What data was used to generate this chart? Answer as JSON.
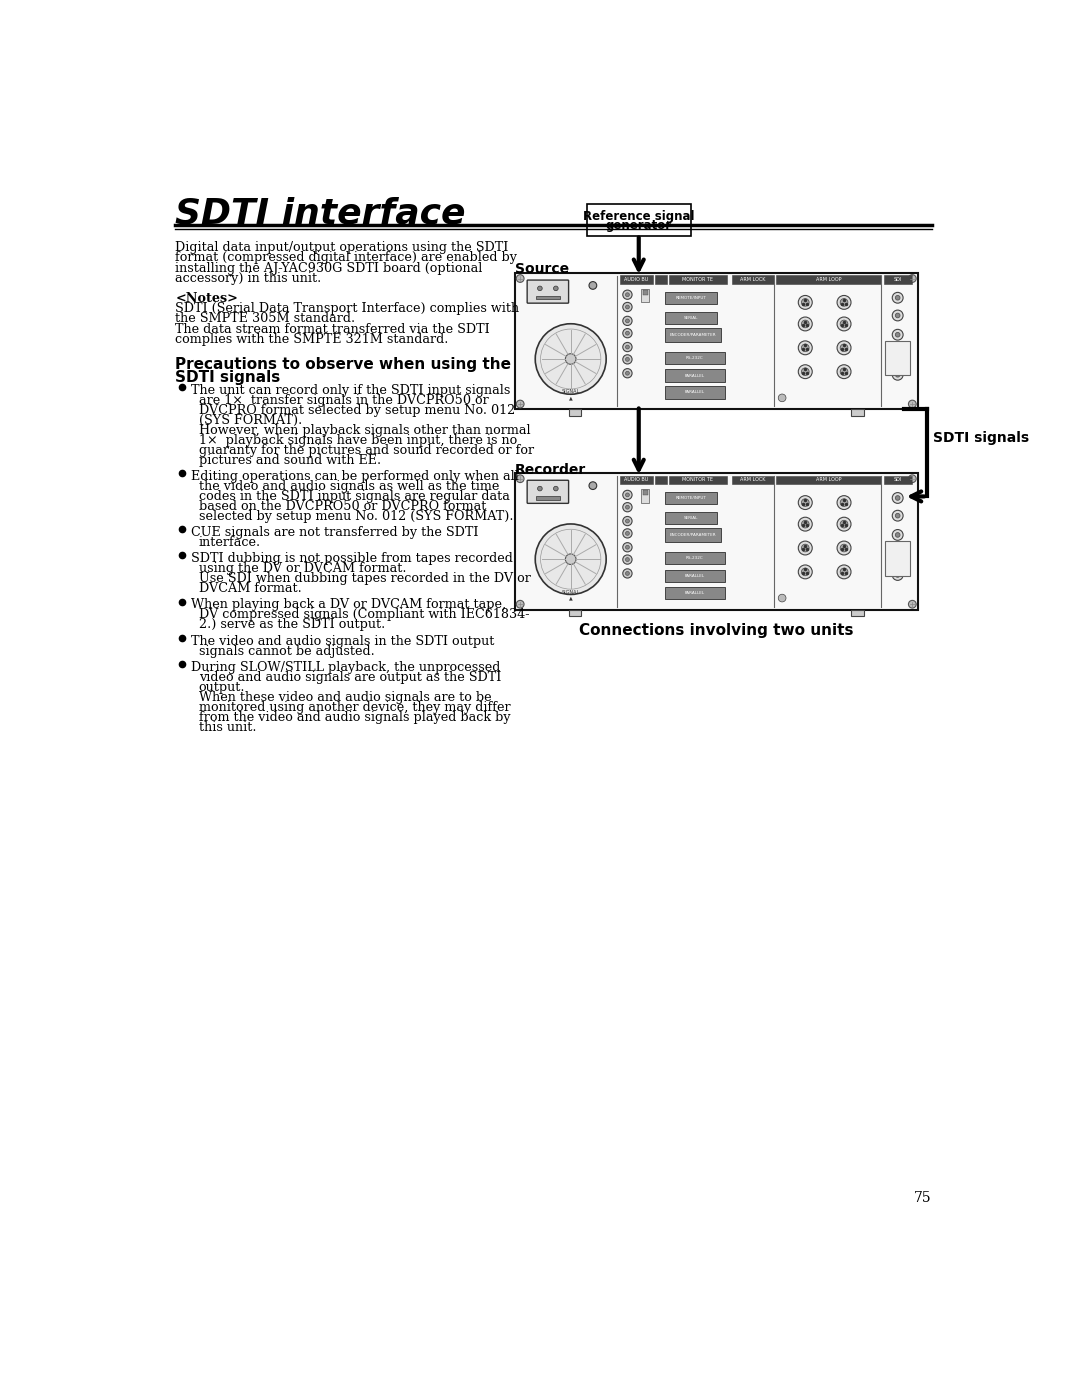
{
  "title": "SDTI interface",
  "bg_color": "#ffffff",
  "text_color": "#000000",
  "page_number": "75",
  "intro_text": "Digital data input/output operations using the SDTI\nformat (compressed digital interface) are enabled by\ninstalling the AJ-YAC930G SDTI board (optional\naccessory) in this unit.",
  "notes_header": "<Notes>",
  "notes_line1": "SDTI (Serial Data Transport Interface) complies with",
  "notes_line2": "the SMPTE 305M standard.",
  "notes_line3": "The data stream format transferred via the SDTI",
  "notes_line4": "complies with the SMPTE 321M standard.",
  "section_header1": "Precautions to observe when using the",
  "section_header2": "SDTI signals",
  "bullet1_lines": [
    "The unit can record only if the SDTI input signals",
    "are 1×  transfer signals in the DVCPRO50 or",
    "DVCPRO format selected by setup menu No. 012",
    "(SYS FORMAT).",
    "However, when playback signals other than normal",
    "1×  playback signals have been input, there is no",
    "guaranty for the pictures and sound recorded or for",
    "pictures and sound with EE."
  ],
  "bullet2_lines": [
    "Editing operations can be performed only when all",
    "the video and audio signals as well as the time",
    "codes in the SDTI input signals are regular data",
    "based on the DVCPRO50 or DVCPRO format",
    "selected by setup menu No. 012 (SYS FORMAT)."
  ],
  "bullet3_lines": [
    "CUE signals are not transferred by the SDTI",
    "interface."
  ],
  "bullet4_lines": [
    "SDTI dubbing is not possible from tapes recorded",
    "using the DV or DVCAM format.",
    "Use SDI when dubbing tapes recorded in the DV or",
    "DVCAM format."
  ],
  "bullet5_lines": [
    "When playing back a DV or DVCAM format tape,",
    "DV compressed signals (Compliant with IEC61834-",
    "2.) serve as the SDTI output."
  ],
  "bullet6_lines": [
    "The video and audio signals in the SDTI output",
    "signals cannot be adjusted."
  ],
  "bullet7_lines": [
    "During SLOW/STILL playback, the unprocessed",
    "video and audio signals are output as the SDTI",
    "output.",
    "When these video and audio signals are to be",
    "monitored using another device, they may differ",
    "from the video and audio signals played back by",
    "this unit."
  ],
  "diagram_caption": "Connections involving two units",
  "ref_signal_label1": "Reference signal",
  "ref_signal_label2": "generator",
  "source_label": "Source",
  "recorder_label": "Recorder",
  "sdti_signals_label": "SDTI signals"
}
